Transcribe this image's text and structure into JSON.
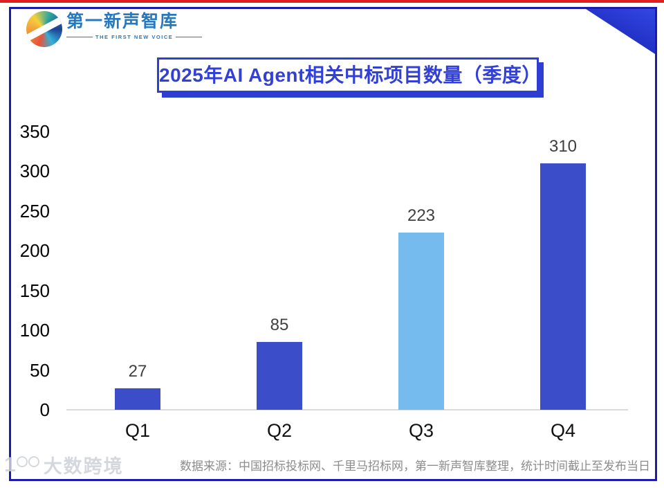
{
  "brand": {
    "logo_text": "第一新声智库",
    "logo_subtext": "THE FIRST NEW VOICE",
    "logo_color": "#2878BE"
  },
  "header": {
    "title": "2025年AI Agent相关中标项目数量（季度）",
    "title_color": "#2E3ED2"
  },
  "chart_data": {
    "type": "bar",
    "title": "2025年AI Agent相关中标项目数量（季度）",
    "categories": [
      "Q1",
      "Q2",
      "Q3",
      "Q4"
    ],
    "values": [
      27,
      85,
      223,
      310
    ],
    "bar_colors": [
      "#3B4DC9",
      "#3B4DC9",
      "#76BBEE",
      "#3B4DC9"
    ],
    "value_labels": [
      "27",
      "85",
      "223",
      "310"
    ],
    "value_label_color": "#3F3F3F",
    "xlabel": "",
    "ylabel": "",
    "ylim": [
      0,
      350
    ],
    "yticks": [
      0,
      50,
      100,
      150,
      200,
      250,
      300,
      350
    ],
    "grid": false,
    "legend": "none",
    "axis_line_color": "#D9D9D9"
  },
  "footer": {
    "source_note": "数据来源：中国招标投标网、千里马招标网，第一新声智库整理，统计时间截止至发布当日"
  },
  "watermark": {
    "text": "大数跨境"
  },
  "accents": {
    "top_bar_red": "#E01E1E",
    "frame_navy": "#1B1BB0",
    "corner_gradient": [
      "#3347E3",
      "#1A27B8"
    ]
  }
}
